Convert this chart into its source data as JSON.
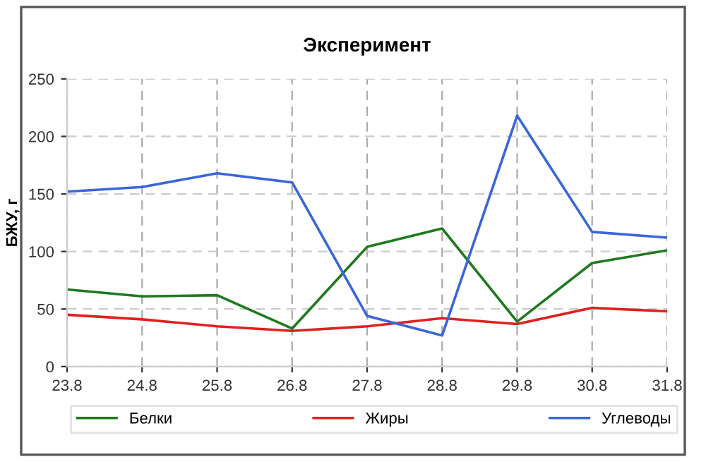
{
  "chart_data": {
    "type": "line",
    "title": "Эксперимент",
    "ylabel": "БЖУ, г",
    "categories": [
      "23.8",
      "24.8",
      "25.8",
      "26.8",
      "27.8",
      "28.8",
      "29.8",
      "30.8",
      "31.8"
    ],
    "series": [
      {
        "name": "Белки",
        "color": "#1f7a1f",
        "values": [
          67,
          61,
          62,
          33,
          104,
          120,
          39,
          90,
          101
        ]
      },
      {
        "name": "Жиры",
        "color": "#e02020",
        "values": [
          45,
          41,
          35,
          31,
          35,
          42,
          37,
          51,
          48
        ]
      },
      {
        "name": "Углеводы",
        "color": "#3a66d8",
        "values": [
          152,
          156,
          168,
          160,
          44,
          27,
          218,
          117,
          112
        ]
      }
    ],
    "ylim": [
      0,
      250
    ],
    "yticks": [
      0,
      50,
      100,
      150,
      200,
      250
    ],
    "grid": true,
    "legend": "bottom",
    "line_style": "solid",
    "marker": "none"
  }
}
